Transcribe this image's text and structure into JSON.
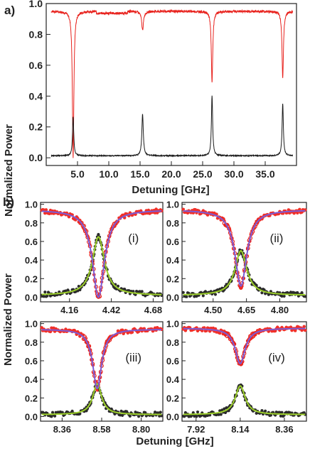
{
  "chart_data": [
    {
      "panel": "a)",
      "type": "line",
      "xlabel": "Detuning [GHz]",
      "ylabel": "Normalized Power",
      "xlim": [
        0,
        40
      ],
      "ylim": [
        -0.05,
        1.0
      ],
      "xticks": [
        "5.0",
        "10.0",
        "15.0",
        "20.0",
        "25.0",
        "30.0",
        "35.0"
      ],
      "yticks": [
        "0.0",
        "0.2",
        "0.4",
        "0.6",
        "0.8",
        "1.0"
      ],
      "xtick_values": [
        5,
        10,
        15,
        20,
        25,
        30,
        35
      ],
      "ytick_values": [
        0,
        0.2,
        0.4,
        0.6,
        0.8,
        1.0
      ],
      "series": [
        {
          "color": "#e8231e",
          "baseline": 0.95,
          "dips": [
            {
              "x": 4.3,
              "min": 0.0,
              "w": 0.14
            },
            {
              "x": 15.4,
              "min": 0.83,
              "w": 0.18
            },
            {
              "x": 26.5,
              "min": 0.49,
              "w": 0.14
            },
            {
              "x": 37.8,
              "min": 0.52,
              "w": 0.14
            }
          ]
        },
        {
          "color": "#1a1a1a",
          "baseline": 0.01,
          "peaks": [
            {
              "x": 4.3,
              "max": 0.26,
              "w": 0.12
            },
            {
              "x": 15.4,
              "max": 0.28,
              "w": 0.14
            },
            {
              "x": 26.5,
              "max": 0.4,
              "w": 0.12
            },
            {
              "x": 37.8,
              "max": 0.35,
              "w": 0.12
            }
          ]
        }
      ]
    },
    {
      "panel": "b)",
      "ylabel": "Normalized Power",
      "xlabel": "Detuning [GHz]",
      "subplots": [
        {
          "label": "(i)",
          "type": "scatter",
          "xlim": [
            3.98,
            4.74
          ],
          "ylim": [
            -0.05,
            1.02
          ],
          "xticks": [
            "4.16",
            "4.42",
            "4.68"
          ],
          "xtick_values": [
            4.16,
            4.42,
            4.68
          ],
          "yticks": [
            "0.0",
            "0.2",
            "0.4",
            "0.6",
            "0.8",
            "1.0"
          ],
          "ytick_values": [
            0,
            0.2,
            0.4,
            0.6,
            0.8,
            1.0
          ],
          "center": 4.34,
          "gamma": 0.045,
          "trans_base": 0.94,
          "trans_min": 0.0,
          "drop_base": 0.02,
          "drop_peak": 0.65
        },
        {
          "label": "(ii)",
          "type": "scatter",
          "xlim": [
            4.36,
            4.92
          ],
          "ylim": [
            -0.05,
            1.02
          ],
          "xticks": [
            "4.50",
            "4.65",
            "4.80"
          ],
          "xtick_values": [
            4.5,
            4.65,
            4.8
          ],
          "yticks": [
            "0.0",
            "0.2",
            "0.4",
            "0.6",
            "0.8",
            "1.0"
          ],
          "ytick_values": [
            0,
            0.2,
            0.4,
            0.6,
            0.8,
            1.0
          ],
          "center": 4.625,
          "gamma": 0.032,
          "trans_base": 0.94,
          "trans_min": 0.12,
          "drop_base": 0.02,
          "drop_peak": 0.5
        },
        {
          "label": "(iii)",
          "type": "scatter",
          "xlim": [
            8.24,
            8.92
          ],
          "ylim": [
            -0.05,
            1.02
          ],
          "xticks": [
            "8.36",
            "8.58",
            "8.80"
          ],
          "xtick_values": [
            8.36,
            8.58,
            8.8
          ],
          "yticks": [
            "0.0",
            "0.2",
            "0.4",
            "0.6",
            "0.8",
            "1.0"
          ],
          "ytick_values": [
            0,
            0.2,
            0.4,
            0.6,
            0.8,
            1.0
          ],
          "center": 8.555,
          "gamma": 0.03,
          "trans_base": 0.94,
          "trans_min": 0.3,
          "drop_base": 0.02,
          "drop_peak": 0.35
        },
        {
          "label": "(iv)",
          "type": "scatter",
          "xlim": [
            7.85,
            8.47
          ],
          "ylim": [
            -0.05,
            1.02
          ],
          "xticks": [
            "7.92",
            "8.14",
            "8.36"
          ],
          "xtick_values": [
            7.92,
            8.14,
            8.36
          ],
          "yticks": [
            "0.0",
            "0.2",
            "0.4",
            "0.6",
            "0.8",
            "1.0"
          ],
          "ytick_values": [
            0,
            0.2,
            0.4,
            0.6,
            0.8,
            1.0
          ],
          "center": 8.14,
          "gamma": 0.03,
          "trans_base": 0.95,
          "trans_min": 0.57,
          "drop_base": 0.02,
          "drop_peak": 0.33
        }
      ]
    }
  ]
}
